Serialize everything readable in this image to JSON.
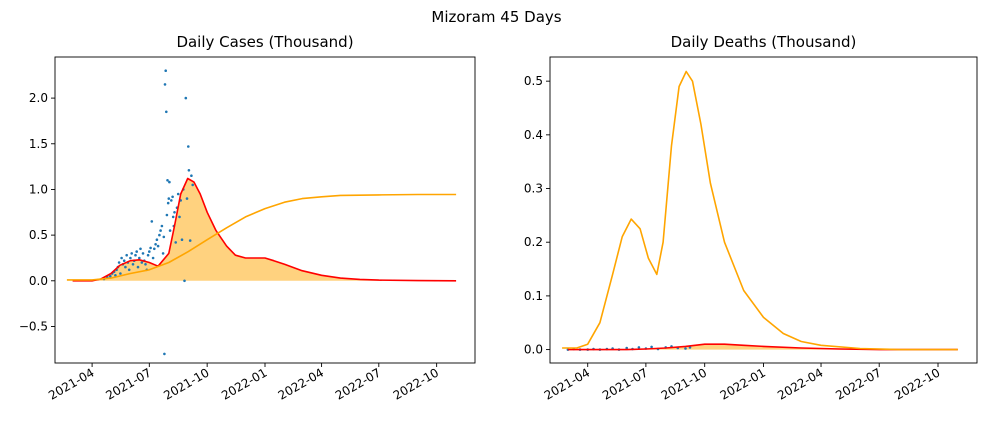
{
  "figure": {
    "suptitle": "Mizoram 45 Days"
  },
  "colors": {
    "scatter": "#1f77b4",
    "fit": "#ff0000",
    "accent": "#ffa500",
    "fill": "#ffa500"
  },
  "chart_data": [
    {
      "type": "line",
      "title": "Daily Cases (Thousand)",
      "xlabel": "",
      "ylabel": "",
      "x_axis": "date",
      "xlim": [
        "2021-02-01",
        "2022-12-01"
      ],
      "ylim": [
        -0.9,
        2.45
      ],
      "x_ticks": [
        "2021-04-01",
        "2021-07-01",
        "2021-10-01",
        "2022-01-01",
        "2022-04-01",
        "2022-07-01",
        "2022-10-01"
      ],
      "x_tick_labels": [
        "2021-04",
        "2021-07",
        "2021-10",
        "2022-01",
        "2022-04",
        "2022-07",
        "2022-10"
      ],
      "y_ticks": [
        -0.5,
        0.0,
        0.5,
        1.0,
        1.5,
        2.0
      ],
      "y_tick_labels": [
        "−0.5",
        "0.0",
        "0.5",
        "1.0",
        "1.5",
        "2.0"
      ],
      "grid": false,
      "series": [
        {
          "kind": "scatter",
          "color": "scatter",
          "points": [
            [
              "2021-04-20",
              0.02
            ],
            [
              "2021-04-25",
              0.04
            ],
            [
              "2021-04-30",
              0.05
            ],
            [
              "2021-05-03",
              0.08
            ],
            [
              "2021-05-06",
              0.1
            ],
            [
              "2021-05-08",
              0.06
            ],
            [
              "2021-05-10",
              0.12
            ],
            [
              "2021-05-12",
              0.15
            ],
            [
              "2021-05-14",
              0.2
            ],
            [
              "2021-05-16",
              0.08
            ],
            [
              "2021-05-18",
              0.25
            ],
            [
              "2021-05-20",
              0.18
            ],
            [
              "2021-05-22",
              0.22
            ],
            [
              "2021-05-24",
              0.15
            ],
            [
              "2021-05-26",
              0.28
            ],
            [
              "2021-05-28",
              0.2
            ],
            [
              "2021-05-30",
              0.12
            ],
            [
              "2021-06-01",
              0.25
            ],
            [
              "2021-06-03",
              0.3
            ],
            [
              "2021-06-05",
              0.18
            ],
            [
              "2021-06-07",
              0.22
            ],
            [
              "2021-06-09",
              0.28
            ],
            [
              "2021-06-11",
              0.32
            ],
            [
              "2021-06-13",
              0.15
            ],
            [
              "2021-06-15",
              0.25
            ],
            [
              "2021-06-17",
              0.35
            ],
            [
              "2021-06-19",
              0.2
            ],
            [
              "2021-06-21",
              0.3
            ],
            [
              "2021-06-23",
              0.22
            ],
            [
              "2021-06-25",
              0.18
            ],
            [
              "2021-06-27",
              0.12
            ],
            [
              "2021-06-29",
              0.28
            ],
            [
              "2021-07-01",
              0.32
            ],
            [
              "2021-07-03",
              0.36
            ],
            [
              "2021-07-05",
              0.65
            ],
            [
              "2021-07-07",
              0.25
            ],
            [
              "2021-07-09",
              0.35
            ],
            [
              "2021-07-11",
              0.4
            ],
            [
              "2021-07-13",
              0.45
            ],
            [
              "2021-07-15",
              0.38
            ],
            [
              "2021-07-17",
              0.5
            ],
            [
              "2021-07-19",
              0.55
            ],
            [
              "2021-07-21",
              0.6
            ],
            [
              "2021-07-23",
              0.3
            ],
            [
              "2021-07-24",
              0.48
            ],
            [
              "2021-07-25",
              -0.8
            ],
            [
              "2021-07-26",
              2.15
            ],
            [
              "2021-07-27",
              2.3
            ],
            [
              "2021-07-28",
              1.85
            ],
            [
              "2021-07-29",
              0.72
            ],
            [
              "2021-07-30",
              1.1
            ],
            [
              "2021-07-31",
              0.85
            ],
            [
              "2021-08-01",
              0.9
            ],
            [
              "2021-08-02",
              1.08
            ],
            [
              "2021-08-03",
              0.55
            ],
            [
              "2021-08-05",
              0.88
            ],
            [
              "2021-08-07",
              0.92
            ],
            [
              "2021-08-08",
              0.7
            ],
            [
              "2021-08-09",
              0.6
            ],
            [
              "2021-08-10",
              0.75
            ],
            [
              "2021-08-12",
              0.42
            ],
            [
              "2021-08-14",
              0.8
            ],
            [
              "2021-08-16",
              0.95
            ],
            [
              "2021-08-18",
              0.7
            ],
            [
              "2021-08-20",
              0.88
            ],
            [
              "2021-08-22",
              0.45
            ],
            [
              "2021-08-24",
              1.0
            ],
            [
              "2021-08-26",
              0.0
            ],
            [
              "2021-08-28",
              2.0
            ],
            [
              "2021-08-30",
              0.9
            ],
            [
              "2021-09-01",
              1.47
            ],
            [
              "2021-09-02",
              1.21
            ],
            [
              "2021-09-04",
              0.44
            ],
            [
              "2021-09-06",
              1.15
            ],
            [
              "2021-09-08",
              1.05
            ]
          ]
        },
        {
          "kind": "line",
          "color": "fit",
          "fill": true,
          "points": [
            [
              "2021-03-01",
              0.0
            ],
            [
              "2021-04-01",
              0.0
            ],
            [
              "2021-04-15",
              0.02
            ],
            [
              "2021-05-01",
              0.08
            ],
            [
              "2021-05-15",
              0.17
            ],
            [
              "2021-06-01",
              0.22
            ],
            [
              "2021-06-15",
              0.23
            ],
            [
              "2021-07-01",
              0.2
            ],
            [
              "2021-07-15",
              0.16
            ],
            [
              "2021-08-01",
              0.3
            ],
            [
              "2021-08-10",
              0.6
            ],
            [
              "2021-08-20",
              0.95
            ],
            [
              "2021-08-31",
              1.12
            ],
            [
              "2021-09-10",
              1.08
            ],
            [
              "2021-09-20",
              0.95
            ],
            [
              "2021-10-01",
              0.75
            ],
            [
              "2021-10-15",
              0.55
            ],
            [
              "2021-11-01",
              0.38
            ],
            [
              "2021-11-15",
              0.28
            ],
            [
              "2021-12-01",
              0.25
            ],
            [
              "2021-12-15",
              0.25
            ],
            [
              "2022-01-01",
              0.25
            ],
            [
              "2022-01-15",
              0.22
            ],
            [
              "2022-02-01",
              0.18
            ],
            [
              "2022-03-01",
              0.11
            ],
            [
              "2022-04-01",
              0.06
            ],
            [
              "2022-05-01",
              0.03
            ],
            [
              "2022-06-01",
              0.015
            ],
            [
              "2022-07-01",
              0.008
            ],
            [
              "2022-09-01",
              0.002
            ],
            [
              "2022-11-01",
              0.0
            ]
          ]
        },
        {
          "kind": "line",
          "color": "accent",
          "fill": false,
          "points": [
            [
              "2021-02-20",
              0.01
            ],
            [
              "2021-04-01",
              0.01
            ],
            [
              "2021-05-01",
              0.03
            ],
            [
              "2021-06-01",
              0.08
            ],
            [
              "2021-07-01",
              0.12
            ],
            [
              "2021-08-01",
              0.2
            ],
            [
              "2021-09-01",
              0.32
            ],
            [
              "2021-10-01",
              0.45
            ],
            [
              "2021-11-01",
              0.58
            ],
            [
              "2021-12-01",
              0.7
            ],
            [
              "2022-01-01",
              0.79
            ],
            [
              "2022-02-01",
              0.86
            ],
            [
              "2022-03-01",
              0.9
            ],
            [
              "2022-04-01",
              0.92
            ],
            [
              "2022-05-01",
              0.935
            ],
            [
              "2022-07-01",
              0.94
            ],
            [
              "2022-09-01",
              0.945
            ],
            [
              "2022-11-01",
              0.945
            ]
          ]
        }
      ]
    },
    {
      "type": "line",
      "title": "Daily Deaths (Thousand)",
      "xlabel": "",
      "ylabel": "",
      "x_axis": "date",
      "xlim": [
        "2021-02-01",
        "2022-12-01"
      ],
      "ylim": [
        -0.025,
        0.545
      ],
      "x_ticks": [
        "2021-04-01",
        "2021-07-01",
        "2021-10-01",
        "2022-01-01",
        "2022-04-01",
        "2022-07-01",
        "2022-10-01"
      ],
      "x_tick_labels": [
        "2021-04",
        "2021-07",
        "2021-10",
        "2022-01",
        "2022-04",
        "2022-07",
        "2022-10"
      ],
      "y_ticks": [
        0.0,
        0.1,
        0.2,
        0.3,
        0.4,
        0.5
      ],
      "y_tick_labels": [
        "0.0",
        "0.1",
        "0.2",
        "0.3",
        "0.4",
        "0.5"
      ],
      "grid": false,
      "series": [
        {
          "kind": "scatter",
          "color": "scatter",
          "points": [
            [
              "2021-03-01",
              0.0
            ],
            [
              "2021-03-10",
              0.001
            ],
            [
              "2021-03-20",
              0.0
            ],
            [
              "2021-04-01",
              0.0
            ],
            [
              "2021-04-10",
              0.001
            ],
            [
              "2021-04-20",
              0.0
            ],
            [
              "2021-05-01",
              0.001
            ],
            [
              "2021-05-10",
              0.002
            ],
            [
              "2021-05-20",
              0.0
            ],
            [
              "2021-06-01",
              0.003
            ],
            [
              "2021-06-10",
              0.001
            ],
            [
              "2021-06-20",
              0.004
            ],
            [
              "2021-07-01",
              0.002
            ],
            [
              "2021-07-10",
              0.005
            ],
            [
              "2021-07-20",
              0.001
            ],
            [
              "2021-08-01",
              0.004
            ],
            [
              "2021-08-10",
              0.006
            ],
            [
              "2021-08-20",
              0.003
            ],
            [
              "2021-09-01",
              0.002
            ],
            [
              "2021-09-08",
              0.004
            ]
          ]
        },
        {
          "kind": "line",
          "color": "fit",
          "fill": true,
          "points": [
            [
              "2021-03-01",
              0.0
            ],
            [
              "2021-06-01",
              0.0
            ],
            [
              "2021-07-01",
              0.001
            ],
            [
              "2021-08-01",
              0.003
            ],
            [
              "2021-09-01",
              0.006
            ],
            [
              "2021-10-01",
              0.01
            ],
            [
              "2021-11-01",
              0.01
            ],
            [
              "2021-12-01",
              0.008
            ],
            [
              "2022-01-01",
              0.006
            ],
            [
              "2022-03-01",
              0.003
            ],
            [
              "2022-05-01",
              0.001
            ],
            [
              "2022-07-01",
              0.0
            ],
            [
              "2022-11-01",
              0.0
            ]
          ]
        },
        {
          "kind": "line",
          "color": "accent",
          "fill": false,
          "points": [
            [
              "2021-02-20",
              0.003
            ],
            [
              "2021-03-15",
              0.003
            ],
            [
              "2021-04-01",
              0.01
            ],
            [
              "2021-04-20",
              0.05
            ],
            [
              "2021-05-10",
              0.14
            ],
            [
              "2021-05-25",
              0.21
            ],
            [
              "2021-06-08",
              0.243
            ],
            [
              "2021-06-22",
              0.225
            ],
            [
              "2021-07-05",
              0.17
            ],
            [
              "2021-07-18",
              0.14
            ],
            [
              "2021-07-28",
              0.2
            ],
            [
              "2021-08-10",
              0.38
            ],
            [
              "2021-08-22",
              0.49
            ],
            [
              "2021-09-02",
              0.518
            ],
            [
              "2021-09-12",
              0.5
            ],
            [
              "2021-09-25",
              0.42
            ],
            [
              "2021-10-10",
              0.31
            ],
            [
              "2021-11-01",
              0.2
            ],
            [
              "2021-12-01",
              0.11
            ],
            [
              "2022-01-01",
              0.06
            ],
            [
              "2022-02-01",
              0.03
            ],
            [
              "2022-03-01",
              0.015
            ],
            [
              "2022-04-01",
              0.008
            ],
            [
              "2022-06-01",
              0.002
            ],
            [
              "2022-08-01",
              0.0
            ],
            [
              "2022-11-01",
              0.0
            ]
          ]
        }
      ]
    }
  ]
}
